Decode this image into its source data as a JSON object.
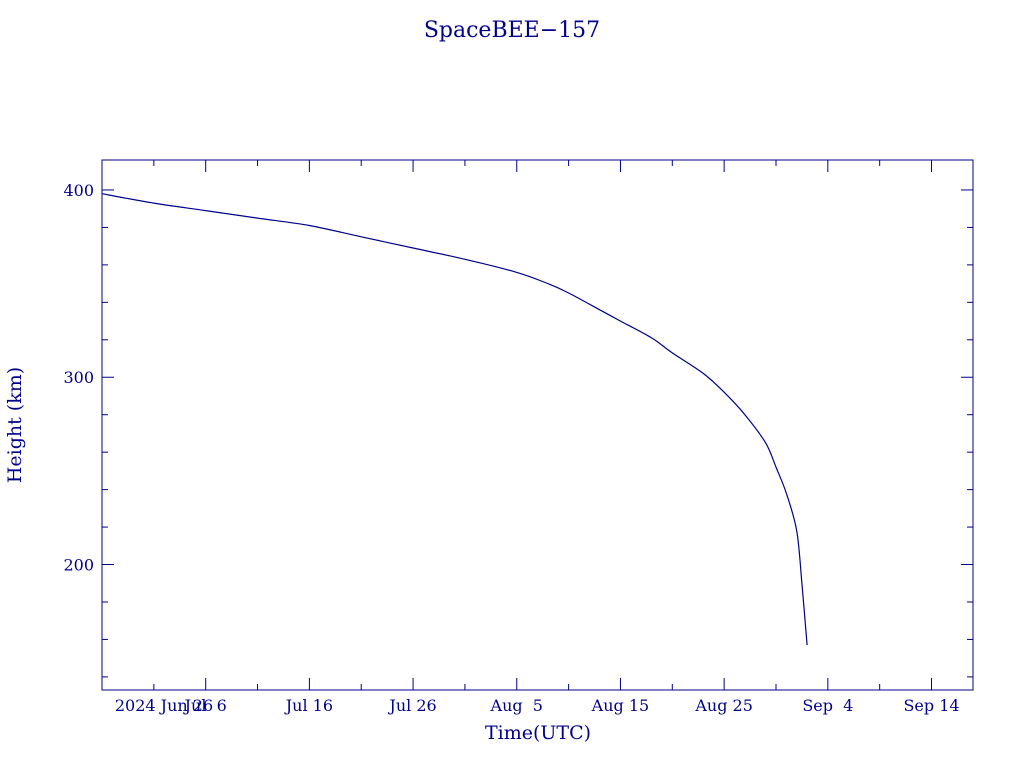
{
  "chart_data": {
    "type": "line",
    "title": "SpaceBEE−157",
    "xlabel": "Time(UTC)",
    "ylabel": "Height (km)",
    "color": "#00008b",
    "grid": false,
    "x_range": [
      "2024-06-26",
      "2024-09-18"
    ],
    "ylim": [
      133,
      416
    ],
    "x_tick_labels": [
      "2024 Jun 26",
      "Jul  6",
      "Jul 16",
      "Jul 26",
      "Aug  5",
      "Aug 15",
      "Aug 25",
      "Sep  4",
      "Sep 14"
    ],
    "x_ticks": [
      "2024-06-26",
      "2024-07-06",
      "2024-07-16",
      "2024-07-26",
      "2024-08-05",
      "2024-08-15",
      "2024-08-25",
      "2024-09-04",
      "2024-09-14"
    ],
    "y_tick_labels": [
      "200",
      "300",
      "400"
    ],
    "y_major_ticks": [
      200,
      300,
      400
    ],
    "y_minor_ticks": [
      140,
      160,
      180,
      220,
      240,
      260,
      280,
      320,
      340,
      360,
      380
    ],
    "series": [
      {
        "x": [
          "2024-06-26",
          "2024-07-01",
          "2024-07-06",
          "2024-07-11",
          "2024-07-16",
          "2024-07-21",
          "2024-07-26",
          "2024-07-31",
          "2024-08-05",
          "2024-08-08",
          "2024-08-10",
          "2024-08-13",
          "2024-08-15",
          "2024-08-18",
          "2024-08-20",
          "2024-08-23",
          "2024-08-25",
          "2024-08-27",
          "2024-08-29",
          "2024-08-30",
          "2024-08-31",
          "2024-09-01",
          "2024-09-01T12:00",
          "2024-09-02"
        ],
        "y": [
          398,
          393,
          389,
          385,
          381,
          375,
          369,
          363,
          356,
          350,
          345,
          336,
          330,
          321,
          313,
          302,
          292,
          280,
          265,
          252,
          238,
          218,
          190,
          157
        ]
      }
    ]
  }
}
